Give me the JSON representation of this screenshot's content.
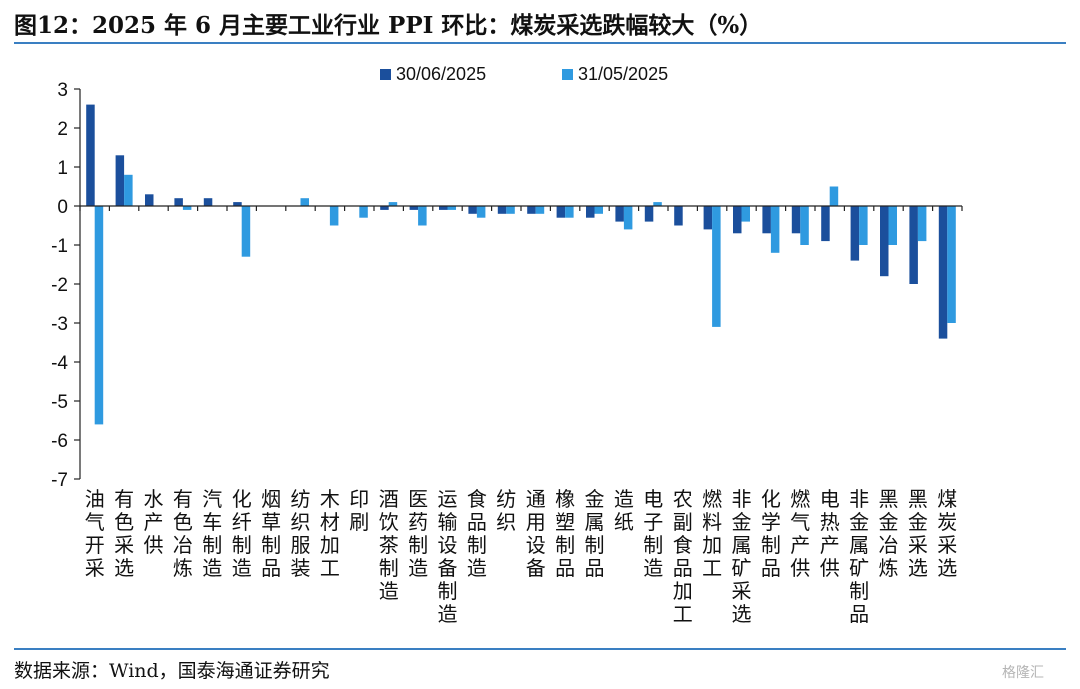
{
  "header": {
    "title": "图12：2025 年 6 月主要工业行业 PPI 环比：煤炭采选跌幅较大（%）"
  },
  "footer": {
    "source": "数据来源：Wind，国泰海通证券研究",
    "watermark": "格隆汇"
  },
  "colors": {
    "series_june": "#1b4f9c",
    "series_may": "#2f9ae0",
    "rule": "#3a7fc2"
  },
  "chart_data": {
    "type": "bar",
    "title": "",
    "xlabel": "",
    "ylabel": "",
    "ylim": [
      -7,
      3
    ],
    "yticks": [
      3,
      2,
      1,
      0,
      -1,
      -2,
      -3,
      -4,
      -5,
      -6,
      -7
    ],
    "legend": "top-center",
    "grid": false,
    "categories": [
      "油气开采",
      "有色采选",
      "水产供",
      "有色冶炼",
      "汽车制造",
      "化纤制造",
      "烟草制品",
      "纺织服装",
      "木材加工",
      "印刷",
      "酒饮茶制造",
      "医药制造",
      "运输设备制造",
      "食品制造",
      "纺织",
      "通用设备",
      "橡塑制品",
      "金属制品",
      "造纸",
      "电子制造",
      "农副食品加工",
      "燃料加工",
      "非金属矿采选",
      "化学制品",
      "燃气产供",
      "电热产供",
      "非金属矿制品",
      "黑金冶炼",
      "黑金采选",
      "煤炭采选"
    ],
    "series": [
      {
        "name": "30/06/2025",
        "values": [
          2.6,
          1.3,
          0.3,
          0.2,
          0.2,
          0.1,
          0.0,
          0.0,
          0.0,
          0.0,
          -0.1,
          -0.1,
          -0.1,
          -0.2,
          -0.2,
          -0.2,
          -0.3,
          -0.3,
          -0.4,
          -0.4,
          -0.5,
          -0.6,
          -0.7,
          -0.7,
          -0.7,
          -0.9,
          -1.4,
          -1.8,
          -2.0,
          -3.4
        ]
      },
      {
        "name": "31/05/2025",
        "values": [
          -5.6,
          0.8,
          0.0,
          -0.1,
          0.0,
          -1.3,
          0.0,
          0.2,
          -0.5,
          -0.3,
          0.1,
          -0.5,
          -0.1,
          -0.3,
          -0.2,
          -0.2,
          -0.3,
          -0.2,
          -0.6,
          0.1,
          0.0,
          -3.1,
          -0.4,
          -1.2,
          -1.0,
          0.5,
          -1.0,
          -1.0,
          -0.9,
          -3.0
        ]
      }
    ]
  }
}
